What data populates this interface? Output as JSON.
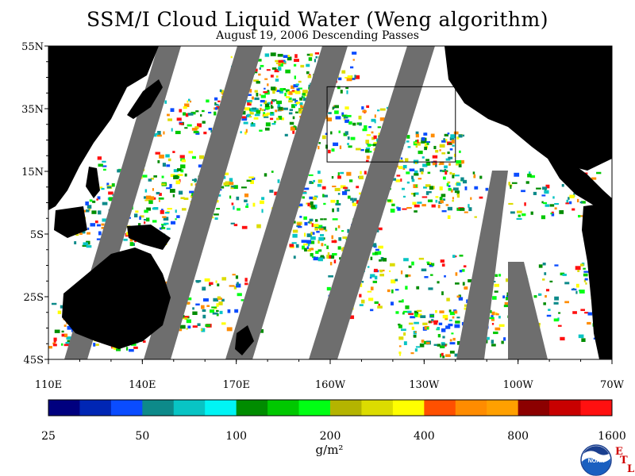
{
  "title": "SSM/I Cloud Liquid Water (Weng algorithm)",
  "subtitle": "August 19, 2006  Descending Passes",
  "map": {
    "lat_labels": [
      "55N",
      "35N",
      "15N",
      "5S",
      "25S",
      "45S"
    ],
    "lat_values": [
      55,
      35,
      15,
      -5,
      -25,
      -45
    ],
    "lon_labels": [
      "110E",
      "140E",
      "170E",
      "160W",
      "130W",
      "100W",
      "70W"
    ],
    "lon_values": [
      110,
      140,
      170,
      200,
      230,
      260,
      290
    ],
    "lat_range": [
      -45,
      55
    ],
    "lon_range": [
      110,
      290
    ],
    "region_box": {
      "lon": [
        199,
        240
      ],
      "lat": [
        18,
        42
      ]
    }
  },
  "colorbar": {
    "tick_labels": [
      "25",
      "50",
      "100",
      "200",
      "400",
      "800",
      "1600"
    ],
    "units": "g/m²",
    "colors": [
      "#00007f",
      "#0026b4",
      "#0a4cff",
      "#0d8a8a",
      "#08c4c4",
      "#00f4f4",
      "#008c00",
      "#00c800",
      "#00ff14",
      "#b4b400",
      "#dcdc00",
      "#ffff00",
      "#ff5000",
      "#ff8c00",
      "#ffa000",
      "#8c0000",
      "#c80000",
      "#ff1010"
    ]
  },
  "logo": {
    "text": "NOAA",
    "letters": [
      "E",
      "T",
      "L"
    ]
  },
  "colors": {
    "land": "#000000",
    "no_data_swath": "#6e6e6e",
    "ocean": "#ffffff"
  }
}
